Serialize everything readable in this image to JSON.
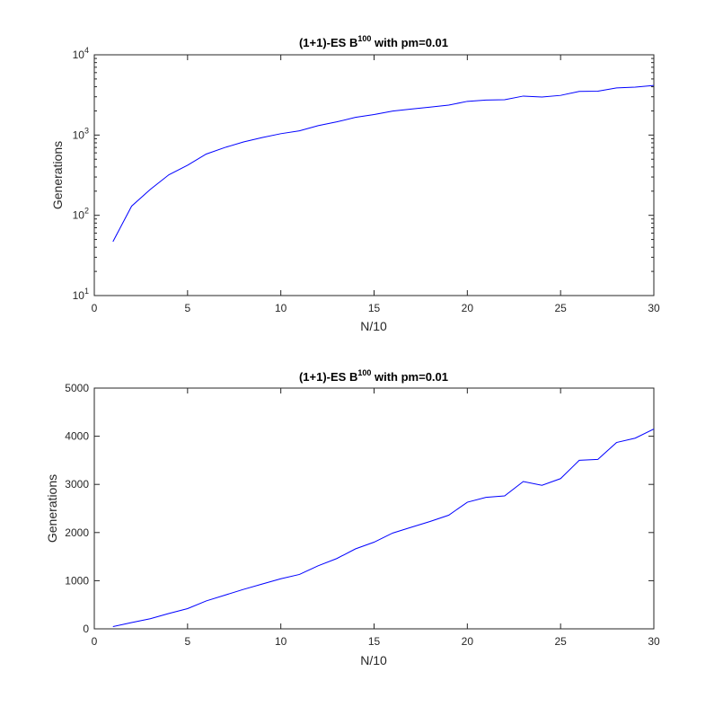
{
  "chart_data": [
    {
      "type": "line",
      "title": "(1+1)-ES B",
      "title_superscript": "100",
      "title_suffix": " with pm=0.01",
      "xlabel": "N/10",
      "ylabel": "Generations",
      "xlim": [
        0,
        30
      ],
      "ylim": [
        10,
        10000
      ],
      "yscale": "log",
      "xticks": [
        0,
        5,
        10,
        15,
        20,
        25,
        30
      ],
      "xtick_labels": [
        "0",
        "5",
        "10",
        "15",
        "20",
        "25",
        "30"
      ],
      "yticks": [
        10,
        100,
        1000,
        10000
      ],
      "ytick_labels": [
        {
          "base": "10",
          "exp": "1"
        },
        {
          "base": "10",
          "exp": "2"
        },
        {
          "base": "10",
          "exp": "3"
        },
        {
          "base": "10",
          "exp": "4"
        }
      ],
      "grid": false,
      "color": "#0000ff",
      "x": [
        1,
        2,
        3,
        4,
        5,
        6,
        7,
        8,
        9,
        10,
        11,
        12,
        13,
        14,
        15,
        16,
        17,
        18,
        19,
        20,
        21,
        22,
        23,
        24,
        25,
        26,
        27,
        28,
        29,
        30
      ],
      "y": [
        47,
        130,
        210,
        320,
        420,
        580,
        700,
        820,
        930,
        1040,
        1130,
        1310,
        1460,
        1660,
        1800,
        1990,
        2110,
        2230,
        2360,
        2630,
        2730,
        2760,
        3060,
        2980,
        3120,
        3500,
        3520,
        3870,
        3960,
        4150
      ]
    },
    {
      "type": "line",
      "title": "(1+1)-ES B",
      "title_superscript": "100",
      "title_suffix": " with pm=0.01",
      "xlabel": "N/10",
      "ylabel": "Generations",
      "xlim": [
        0,
        30
      ],
      "ylim": [
        0,
        5000
      ],
      "yscale": "linear",
      "xticks": [
        0,
        5,
        10,
        15,
        20,
        25,
        30
      ],
      "xtick_labels": [
        "0",
        "5",
        "10",
        "15",
        "20",
        "25",
        "30"
      ],
      "yticks": [
        0,
        1000,
        2000,
        3000,
        4000,
        5000
      ],
      "ytick_labels": [
        "0",
        "1000",
        "2000",
        "3000",
        "4000",
        "5000"
      ],
      "grid": false,
      "color": "#0000ff",
      "x": [
        1,
        2,
        3,
        4,
        5,
        6,
        7,
        8,
        9,
        10,
        11,
        12,
        13,
        14,
        15,
        16,
        17,
        18,
        19,
        20,
        21,
        22,
        23,
        24,
        25,
        26,
        27,
        28,
        29,
        30
      ],
      "y": [
        47,
        130,
        210,
        320,
        420,
        580,
        700,
        820,
        930,
        1040,
        1130,
        1310,
        1460,
        1660,
        1800,
        1990,
        2110,
        2230,
        2360,
        2630,
        2730,
        2760,
        3060,
        2980,
        3120,
        3500,
        3520,
        3870,
        3960,
        4150
      ]
    }
  ]
}
